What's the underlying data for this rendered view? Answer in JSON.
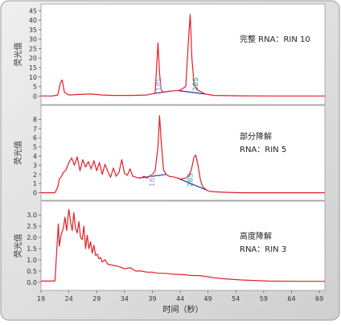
{
  "figure": {
    "x_axis_label": "时间（秒）",
    "x_ticks": [
      "19",
      "24",
      "29",
      "34",
      "39",
      "44",
      "49",
      "54",
      "59",
      "64",
      "69"
    ],
    "colors": {
      "frame_background": "#d8d8d8",
      "panel_fill": "#ffffff",
      "trace": "#e41e26",
      "baseline": "#2233aa",
      "label_18s": "#9aa0d6",
      "label_28s": "#2aa0a0",
      "grid": "#dddddd"
    }
  },
  "chart_data": [
    {
      "type": "line",
      "panel": "top",
      "ylabel": "荧光值",
      "annotation_lines": [
        "完整 RNA：RIN 10"
      ],
      "peak_labels": [
        "18S",
        "28S"
      ],
      "y_ticks": [
        "0",
        "5",
        "10",
        "15",
        "20",
        "25",
        "30",
        "35",
        "40",
        "45"
      ],
      "ylim": [
        -2,
        46
      ],
      "xlim": [
        19,
        70
      ],
      "series": [
        {
          "x": [
            19,
            21,
            22,
            22.5,
            22.8,
            23.2,
            24,
            26,
            28,
            30,
            32,
            35,
            38,
            39.5,
            40.0,
            40.3,
            40.6,
            41.0,
            42,
            44,
            45.0,
            45.5,
            45.8,
            46.1,
            46.5,
            47.2,
            48.5,
            50,
            55,
            60,
            65,
            70
          ],
          "y": [
            0,
            0,
            0.5,
            7,
            8.5,
            2,
            0.5,
            0.8,
            1,
            0.5,
            0.3,
            0.3,
            0.5,
            1.5,
            28,
            12,
            3,
            2,
            2.5,
            3,
            5,
            30,
            43,
            20,
            6,
            3,
            1,
            0.3,
            0.1,
            0,
            0,
            0
          ]
        }
      ]
    },
    {
      "type": "line",
      "panel": "middle",
      "ylabel": "荧光值",
      "annotation_lines": [
        "部分降解",
        "RNA：RIN 5"
      ],
      "peak_labels": [
        "18S",
        "28S"
      ],
      "y_ticks": [
        "0",
        "1",
        "2",
        "3",
        "4",
        "5",
        "6",
        "7",
        "8"
      ],
      "ylim": [
        -0.3,
        9
      ],
      "xlim": [
        19,
        70
      ],
      "series": [
        {
          "x": [
            19,
            21.5,
            22,
            22.3,
            22.7,
            23,
            23.5,
            24,
            24.5,
            25,
            25.5,
            26,
            26.5,
            27,
            27.5,
            28,
            28.5,
            29,
            29.5,
            30,
            30.5,
            31,
            31.5,
            32,
            32.5,
            33,
            33.5,
            34,
            34.5,
            35,
            35.5,
            36,
            36.5,
            37,
            37.5,
            38,
            38.5,
            39,
            39.5,
            40,
            40.3,
            40.6,
            41,
            41.5,
            42,
            43,
            44,
            45,
            45.5,
            46,
            46.5,
            46.8,
            47.2,
            47.6,
            48,
            48.5,
            49,
            50,
            52,
            55,
            60,
            65,
            70
          ],
          "y": [
            0,
            0,
            0.6,
            1.5,
            1.8,
            2.2,
            2.5,
            3.3,
            3.8,
            3.0,
            3.9,
            2.4,
            3.6,
            2.8,
            3.4,
            2.6,
            3.5,
            2.4,
            3.3,
            2.0,
            3.1,
            2.3,
            1.7,
            2.7,
            1.8,
            2.2,
            3.6,
            2.1,
            1.9,
            2.6,
            1.8,
            1.7,
            1.6,
            1.6,
            1.8,
            1.6,
            1.8,
            2.0,
            2.4,
            5.0,
            8.4,
            5.5,
            2.5,
            2.0,
            1.8,
            1.7,
            1.5,
            1.6,
            1.8,
            2.5,
            3.9,
            4.1,
            3.0,
            1.5,
            0.7,
            0.4,
            0.2,
            0.1,
            0.05,
            0,
            0,
            0,
            0
          ]
        }
      ]
    },
    {
      "type": "line",
      "panel": "bottom",
      "ylabel": "荧光值",
      "annotation_lines": [
        "高度降解",
        "RNA：RIN 3"
      ],
      "peak_labels": [],
      "y_ticks": [
        "0.0",
        "0.5",
        "1.0",
        "1.5",
        "2.0",
        "2.5",
        "3.0"
      ],
      "ylim": [
        -0.15,
        3.4
      ],
      "xlim": [
        19,
        70
      ],
      "series": [
        {
          "x": [
            19,
            21.5,
            21.8,
            22.1,
            22.3,
            22.6,
            23,
            23.3,
            23.6,
            24,
            24.3,
            24.6,
            24.9,
            25.2,
            25.5,
            25.8,
            26.1,
            26.4,
            26.7,
            27,
            27.3,
            27.6,
            27.9,
            28.2,
            28.5,
            28.8,
            29.1,
            29.4,
            29.7,
            30,
            30.5,
            31,
            32,
            33,
            34,
            35,
            36,
            37,
            38,
            39,
            40,
            41,
            42,
            43,
            44,
            45,
            46,
            47,
            48,
            50,
            52,
            55,
            58,
            60,
            65,
            70
          ],
          "y": [
            0.05,
            0.05,
            1.3,
            2.6,
            1.6,
            2.1,
            2.4,
            2.9,
            2.3,
            3.25,
            2.7,
            2.3,
            3.1,
            2.4,
            2.2,
            2.7,
            2.0,
            1.9,
            2.5,
            1.5,
            2.1,
            1.5,
            1.8,
            1.3,
            1.65,
            1.2,
            1.25,
            1.05,
            1.1,
            0.9,
            1.0,
            0.8,
            0.75,
            0.7,
            0.6,
            0.65,
            0.5,
            0.5,
            0.45,
            0.45,
            0.4,
            0.4,
            0.38,
            0.35,
            0.35,
            0.33,
            0.3,
            0.3,
            0.28,
            0.2,
            0.15,
            0.1,
            0.07,
            0.05,
            0.04,
            0.04
          ]
        }
      ]
    }
  ]
}
